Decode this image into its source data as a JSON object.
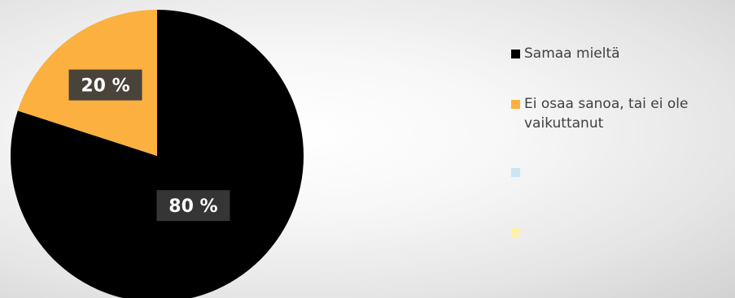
{
  "chart_data": {
    "type": "pie",
    "title": "",
    "slices": [
      {
        "label": "Samaa mieltä",
        "value": 80,
        "display": "80 %",
        "color": "#000000"
      },
      {
        "label": "Ei osaa sanoa, tai ei ole vaikuttanut",
        "value": 20,
        "display": "20 %",
        "color": "#FBB040"
      }
    ],
    "legend": {
      "placement": "right",
      "entries": [
        {
          "label": "Samaa mieltä",
          "color": "#000000"
        },
        {
          "label": "Ei osaa sanoa, tai ei ole vaikuttanut",
          "color": "#FBB040"
        },
        {
          "label": "",
          "color": "#C9E5F1"
        },
        {
          "label": "",
          "color": "#FEF1A8"
        }
      ]
    }
  }
}
